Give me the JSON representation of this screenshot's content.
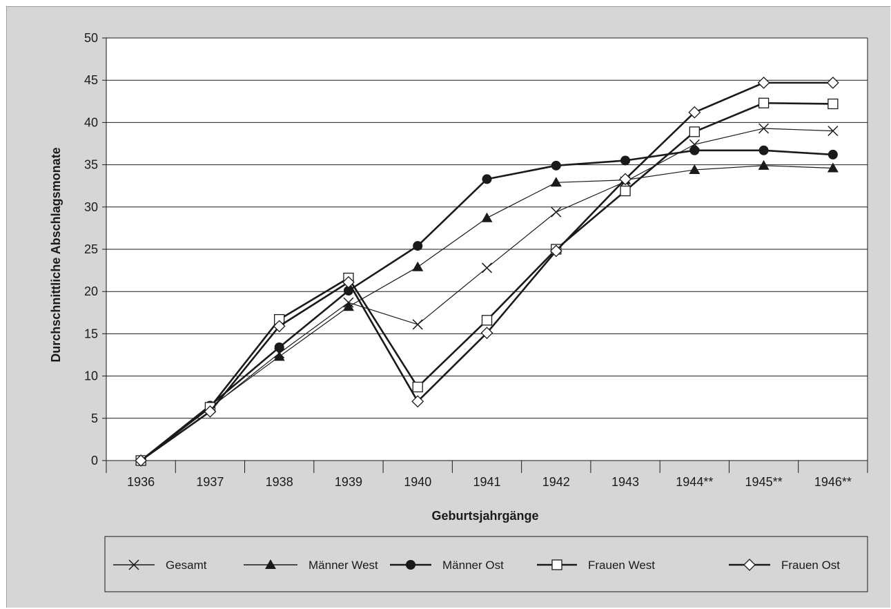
{
  "chart_data": {
    "type": "line",
    "xlabel": "Geburtsjahrgänge",
    "ylabel": "Durchschnittliche Abschlagsmonate",
    "ylim": [
      0,
      50
    ],
    "ytick_step": 5,
    "grid": true,
    "legend_position": "bottom",
    "categories": [
      "1936",
      "1937",
      "1938",
      "1939",
      "1940",
      "1941",
      "1942",
      "1943",
      "1944**",
      "1945**",
      "1946**"
    ],
    "series": [
      {
        "name": "Gesamt",
        "marker": "x",
        "bold": false,
        "values": [
          0,
          6.2,
          12.7,
          18.7,
          16.1,
          22.8,
          29.4,
          33.0,
          37.4,
          39.3,
          39.0
        ]
      },
      {
        "name": "Männer West",
        "marker": "triangle",
        "bold": false,
        "values": [
          0,
          6.3,
          12.3,
          18.2,
          22.9,
          28.7,
          32.9,
          33.2,
          34.4,
          34.9,
          34.6
        ]
      },
      {
        "name": "Männer Ost",
        "marker": "circle",
        "bold": true,
        "values": [
          0,
          6.5,
          13.4,
          20.1,
          25.4,
          33.3,
          34.9,
          35.5,
          36.7,
          36.7,
          36.2
        ]
      },
      {
        "name": "Frauen West",
        "marker": "square",
        "bold": true,
        "values": [
          0,
          6.3,
          16.7,
          21.6,
          8.7,
          16.6,
          25.0,
          31.9,
          38.9,
          42.3,
          42.2
        ]
      },
      {
        "name": "Frauen Ost",
        "marker": "diamond",
        "bold": true,
        "values": [
          0,
          5.8,
          15.9,
          21.1,
          7.0,
          15.1,
          24.8,
          33.3,
          41.2,
          44.7,
          44.7
        ]
      }
    ]
  }
}
